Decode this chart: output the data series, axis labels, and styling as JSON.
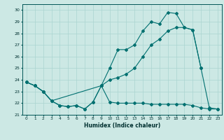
{
  "xlabel": "Humidex (Indice chaleur)",
  "bg_color": "#cce8e4",
  "grid_color": "#aad4d0",
  "line_color": "#007070",
  "xlim": [
    -0.5,
    23.5
  ],
  "ylim": [
    21,
    30.5
  ],
  "yticks": [
    21,
    22,
    23,
    24,
    25,
    26,
    27,
    28,
    29,
    30
  ],
  "xticks": [
    0,
    1,
    2,
    3,
    4,
    5,
    6,
    7,
    8,
    9,
    10,
    11,
    12,
    13,
    14,
    15,
    16,
    17,
    18,
    19,
    20,
    21,
    22,
    23
  ],
  "series1_x": [
    0,
    1,
    2,
    3,
    4,
    5,
    6,
    7,
    8,
    9,
    10,
    11,
    12,
    13,
    14,
    15,
    16,
    17,
    18,
    19,
    20,
    21,
    22,
    23
  ],
  "series1_y": [
    23.8,
    23.5,
    23.0,
    22.2,
    21.8,
    21.7,
    21.8,
    21.5,
    22.1,
    23.5,
    22.1,
    22.0,
    22.0,
    22.0,
    22.0,
    21.9,
    21.9,
    21.9,
    21.9,
    21.9,
    21.8,
    21.6,
    21.5,
    21.5
  ],
  "series2_x": [
    0,
    1,
    2,
    3,
    4,
    5,
    6,
    7,
    8,
    9,
    10,
    11,
    12,
    13,
    14,
    15,
    16,
    17,
    18,
    19,
    20,
    21,
    22,
    23
  ],
  "series2_y": [
    23.8,
    23.5,
    23.0,
    22.2,
    21.8,
    21.7,
    21.8,
    21.5,
    22.1,
    23.5,
    25.0,
    26.6,
    26.6,
    27.0,
    28.2,
    29.0,
    28.8,
    29.8,
    29.7,
    28.5,
    28.3,
    25.0,
    21.6,
    21.5
  ],
  "series3_x": [
    0,
    1,
    2,
    3,
    9,
    10,
    11,
    12,
    13,
    14,
    15,
    16,
    17,
    18,
    19,
    20,
    21
  ],
  "series3_y": [
    23.8,
    23.5,
    23.0,
    22.2,
    23.5,
    24.0,
    24.2,
    24.5,
    25.0,
    26.0,
    27.0,
    27.5,
    28.2,
    28.5,
    28.5,
    28.3,
    25.0
  ]
}
